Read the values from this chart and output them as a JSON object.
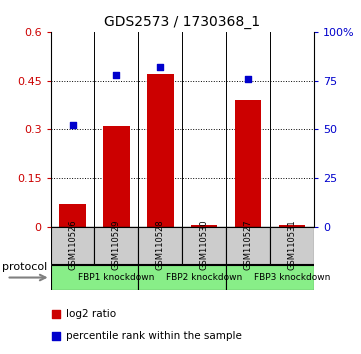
{
  "title": "GDS2573 / 1730368_1",
  "samples": [
    "GSM110526",
    "GSM110529",
    "GSM110528",
    "GSM110530",
    "GSM110527",
    "GSM110531"
  ],
  "log2_ratio": [
    0.07,
    0.31,
    0.47,
    0.005,
    0.39,
    0.005
  ],
  "percentile_rank": [
    52,
    78,
    82,
    0,
    76,
    0
  ],
  "bar_color": "#cc0000",
  "dot_color": "#0000cc",
  "ylim_left": [
    0,
    0.6
  ],
  "ylim_right": [
    0,
    100
  ],
  "yticks_left": [
    0,
    0.15,
    0.3,
    0.45,
    0.6
  ],
  "yticks_right": [
    0,
    25,
    50,
    75,
    100
  ],
  "ytick_labels_left": [
    "0",
    "0.15",
    "0.3",
    "0.45",
    "0.6"
  ],
  "ytick_labels_right": [
    "0",
    "25",
    "50",
    "75",
    "100%"
  ],
  "protocols": [
    {
      "label": "FBP1 knockdown",
      "start": 0,
      "end": 2,
      "color": "#88ee88"
    },
    {
      "label": "FBP2 knockdown",
      "start": 2,
      "end": 4,
      "color": "#88ee88"
    },
    {
      "label": "FBP3 knockdown",
      "start": 4,
      "end": 6,
      "color": "#88ee88"
    }
  ],
  "protocol_label": "protocol",
  "legend_bar_label": "log2 ratio",
  "legend_dot_label": "percentile rank within the sample",
  "bg_sample": "#cccccc",
  "title_fontsize": 10,
  "tick_fontsize": 8,
  "bar_width": 0.6
}
